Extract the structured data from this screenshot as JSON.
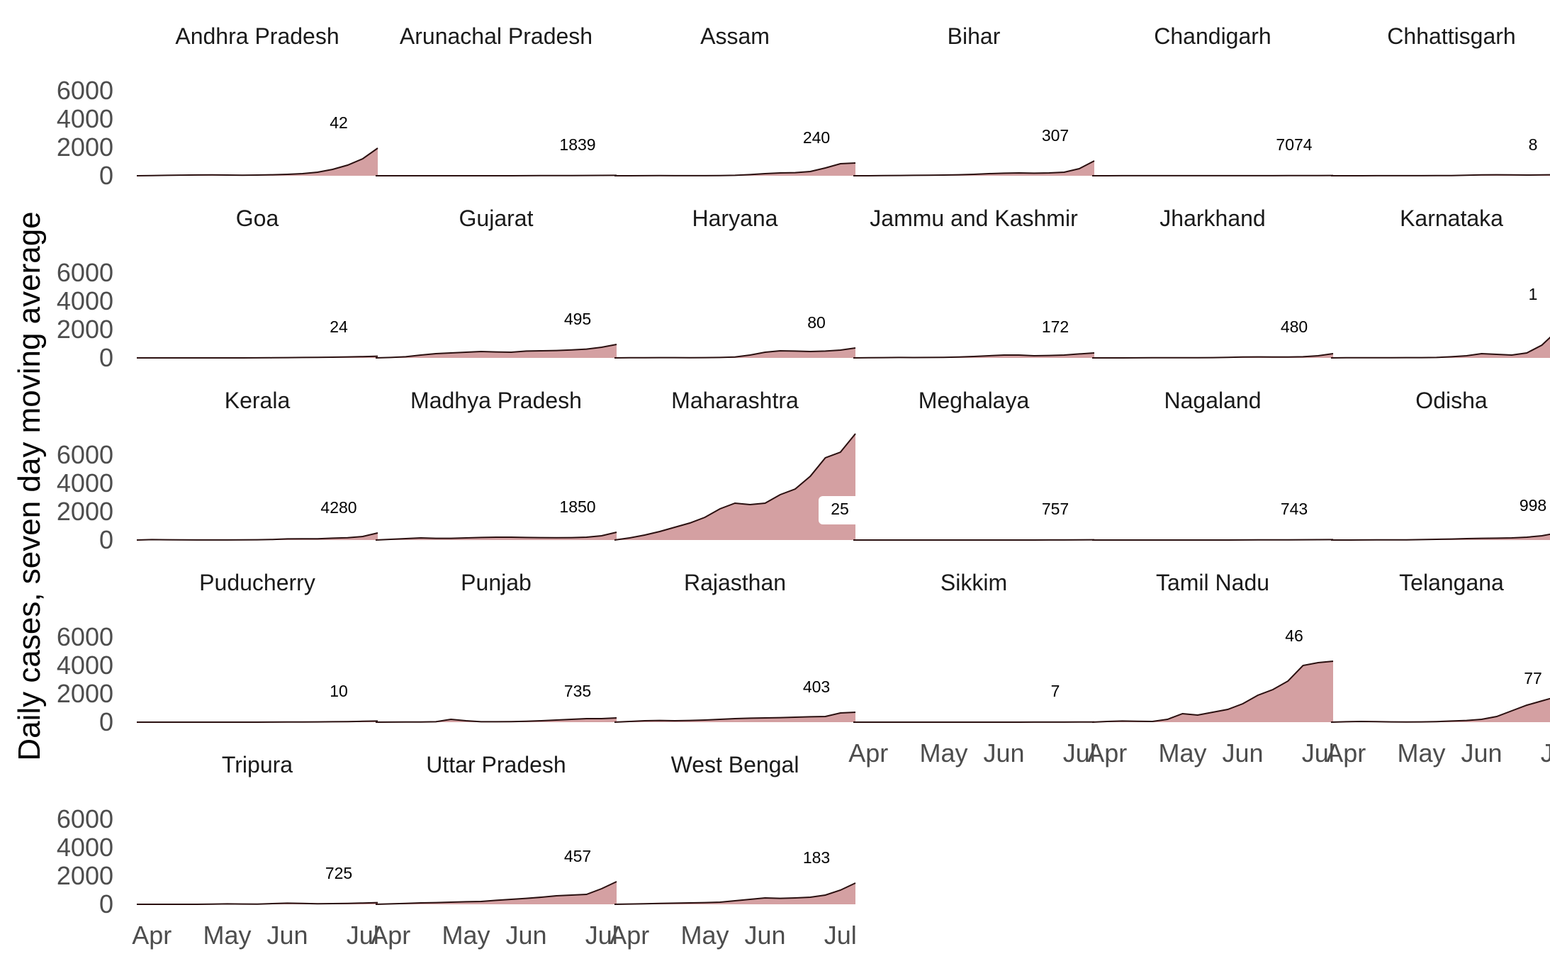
{
  "chart_data": {
    "type": "area",
    "ylabel": "Daily cases, seven day moving average",
    "xlabel": "",
    "x_ticks": [
      "Apr",
      "May",
      "Jun",
      "Jul"
    ],
    "y_ticks": [
      0,
      2000,
      4000,
      6000
    ],
    "ylim": [
      0,
      7500
    ],
    "grid": false,
    "x_dates": [
      "Mar 25",
      "Apr 1",
      "Apr 8",
      "Apr 15",
      "Apr 22",
      "Apr 29",
      "May 6",
      "May 13",
      "May 20",
      "May 27",
      "Jun 3",
      "Jun 10",
      "Jun 17",
      "Jun 24",
      "Jul 1",
      "Jul 8",
      "Jul 15"
    ],
    "colors": {
      "fill": "#d4a0a2",
      "line": "#2a1010",
      "label_box": "#ffffff"
    },
    "panels": [
      {
        "name": "Andhra Pradesh",
        "label": "42",
        "values": [
          0,
          10,
          30,
          45,
          55,
          60,
          50,
          40,
          50,
          70,
          100,
          150,
          250,
          450,
          750,
          1200,
          1950
        ]
      },
      {
        "name": "Arunachal Pradesh",
        "label": "1839",
        "values": [
          0,
          0,
          0,
          0,
          0,
          0,
          0,
          0,
          0,
          2,
          5,
          8,
          12,
          15,
          20,
          25,
          30
        ]
      },
      {
        "name": "Assam",
        "label": "240",
        "values": [
          0,
          2,
          5,
          8,
          5,
          5,
          5,
          10,
          30,
          80,
          150,
          200,
          220,
          300,
          550,
          850,
          900
        ]
      },
      {
        "name": "Bihar",
        "label": "307",
        "values": [
          0,
          2,
          10,
          20,
          30,
          40,
          50,
          70,
          100,
          150,
          180,
          200,
          180,
          200,
          250,
          500,
          1050
        ]
      },
      {
        "name": "Chandigarh",
        "label": "7074",
        "values": [
          0,
          2,
          3,
          5,
          5,
          5,
          5,
          5,
          5,
          5,
          5,
          5,
          5,
          8,
          10,
          15,
          20
        ]
      },
      {
        "name": "Chhattisgarh",
        "label": "8",
        "values": [
          0,
          1,
          2,
          3,
          3,
          3,
          5,
          10,
          15,
          40,
          60,
          70,
          60,
          50,
          60,
          80,
          150
        ]
      },
      {
        "name": "Goa",
        "label": "24",
        "values": [
          0,
          1,
          1,
          1,
          0,
          0,
          0,
          0,
          5,
          10,
          20,
          30,
          40,
          50,
          70,
          90,
          120
        ]
      },
      {
        "name": "Gujarat",
        "label": "495",
        "values": [
          0,
          30,
          80,
          200,
          300,
          350,
          400,
          450,
          420,
          400,
          480,
          500,
          520,
          560,
          620,
          750,
          950
        ]
      },
      {
        "name": "Haryana",
        "label": "80",
        "values": [
          0,
          10,
          15,
          20,
          20,
          15,
          20,
          30,
          60,
          200,
          400,
          500,
          480,
          450,
          480,
          550,
          700
        ]
      },
      {
        "name": "Jammu and Kashmir",
        "label": "172",
        "values": [
          0,
          10,
          20,
          30,
          25,
          30,
          40,
          60,
          100,
          150,
          200,
          200,
          150,
          170,
          200,
          280,
          350
        ]
      },
      {
        "name": "Jharkhand",
        "label": "480",
        "values": [
          0,
          1,
          2,
          5,
          10,
          10,
          10,
          15,
          20,
          40,
          60,
          70,
          60,
          60,
          80,
          150,
          300
        ]
      },
      {
        "name": "Karnataka",
        "label": "1",
        "values": [
          0,
          10,
          15,
          15,
          15,
          20,
          20,
          30,
          80,
          150,
          300,
          250,
          200,
          350,
          900,
          1900,
          2700
        ]
      },
      {
        "name": "Kerala",
        "label": "4280",
        "values": [
          0,
          30,
          20,
          10,
          5,
          5,
          5,
          10,
          20,
          40,
          80,
          90,
          90,
          130,
          160,
          250,
          500
        ]
      },
      {
        "name": "Madhya Pradesh",
        "label": "1850",
        "values": [
          0,
          50,
          100,
          150,
          120,
          120,
          150,
          180,
          200,
          200,
          180,
          170,
          160,
          170,
          200,
          300,
          550
        ]
      },
      {
        "name": "Maharashtra",
        "label": "25",
        "values": [
          0,
          150,
          350,
          600,
          900,
          1200,
          1600,
          2200,
          2600,
          2500,
          2600,
          3200,
          3600,
          4500,
          5800,
          6200,
          7500
        ]
      },
      {
        "name": "Meghalaya",
        "label": "757",
        "values": [
          0,
          0,
          0,
          0,
          0,
          0,
          0,
          0,
          0,
          0,
          1,
          2,
          2,
          3,
          5,
          10,
          20
        ]
      },
      {
        "name": "Nagaland",
        "label": "743",
        "values": [
          0,
          0,
          0,
          0,
          0,
          0,
          0,
          0,
          0,
          2,
          5,
          10,
          12,
          15,
          20,
          25,
          30
        ]
      },
      {
        "name": "Odisha",
        "label": "998",
        "values": [
          0,
          2,
          5,
          10,
          10,
          15,
          30,
          50,
          70,
          100,
          120,
          130,
          150,
          200,
          300,
          500,
          650
        ]
      },
      {
        "name": "Puducherry",
        "label": "10",
        "values": [
          0,
          0,
          0,
          0,
          0,
          0,
          0,
          0,
          2,
          5,
          10,
          15,
          20,
          30,
          40,
          60,
          80
        ]
      },
      {
        "name": "Punjab",
        "label": "735",
        "values": [
          0,
          5,
          10,
          15,
          30,
          200,
          100,
          30,
          30,
          40,
          60,
          100,
          150,
          200,
          250,
          250,
          300
        ]
      },
      {
        "name": "Rajasthan",
        "label": "403",
        "values": [
          0,
          50,
          100,
          120,
          100,
          120,
          150,
          200,
          250,
          280,
          300,
          320,
          350,
          380,
          400,
          650,
          700
        ]
      },
      {
        "name": "Sikkim",
        "label": "7",
        "values": [
          0,
          0,
          0,
          0,
          0,
          0,
          0,
          0,
          0,
          0,
          0,
          2,
          3,
          5,
          5,
          8,
          10
        ]
      },
      {
        "name": "Tamil Nadu",
        "label": "46",
        "values": [
          0,
          50,
          80,
          60,
          50,
          200,
          600,
          500,
          700,
          900,
          1300,
          1900,
          2300,
          2900,
          4000,
          4200,
          4300
        ]
      },
      {
        "name": "Telangana",
        "label": "77",
        "values": [
          0,
          30,
          50,
          40,
          20,
          10,
          20,
          40,
          80,
          120,
          200,
          400,
          800,
          1200,
          1500,
          1800,
          1300
        ]
      },
      {
        "name": "Tripura",
        "label": "725",
        "values": [
          0,
          0,
          0,
          0,
          0,
          10,
          30,
          20,
          10,
          50,
          80,
          60,
          40,
          50,
          60,
          90,
          120
        ]
      },
      {
        "name": "Uttar Pradesh",
        "label": "457",
        "values": [
          0,
          30,
          60,
          100,
          120,
          150,
          180,
          200,
          280,
          350,
          420,
          500,
          600,
          650,
          700,
          1100,
          1600
        ]
      },
      {
        "name": "West Bengal",
        "label": "183",
        "values": [
          0,
          20,
          40,
          60,
          80,
          100,
          120,
          150,
          250,
          350,
          450,
          420,
          450,
          500,
          650,
          1000,
          1500
        ]
      }
    ]
  }
}
